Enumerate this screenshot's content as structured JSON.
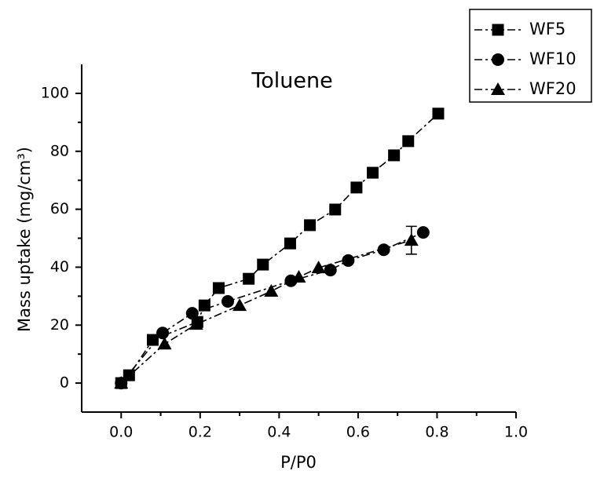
{
  "chart_data": {
    "type": "line",
    "title": "Toluene",
    "xlabel": "P/P0",
    "ylabel": "Mass uptake (mg/cm³)",
    "xlim": [
      -0.1,
      1.0
    ],
    "ylim": [
      -10,
      110
    ],
    "xticks": [
      {
        "value": 0,
        "label": "0.0"
      },
      0.2,
      0.4,
      0.6,
      0.8,
      {
        "value": 1,
        "label": "1.0"
      }
    ],
    "yticks": [
      0,
      20,
      40,
      60,
      80,
      100
    ],
    "legend": "top-right",
    "series": [
      {
        "name": "WF5",
        "color": "#000000",
        "marker": "square",
        "x": [
          0,
          0.02,
          0.08,
          0.193,
          0.211,
          0.247,
          0.323,
          0.359,
          0.428,
          0.478,
          0.542,
          0.596,
          0.637,
          0.691,
          0.727,
          0.803
        ],
        "values": [
          0,
          2.7,
          14.9,
          21.1,
          26.8,
          32.8,
          36,
          40.9,
          48.2,
          54.5,
          59.9,
          67.5,
          72.6,
          78.6,
          83.5,
          93
        ]
      },
      {
        "name": "WF10",
        "color": "#000000",
        "marker": "circle",
        "x": [
          0,
          0.105,
          0.18,
          0.27,
          0.43,
          0.53,
          0.575,
          0.665,
          0.765
        ],
        "values": [
          0,
          17.3,
          24.1,
          28.2,
          35.3,
          39,
          42.3,
          46,
          52
        ]
      },
      {
        "name": "WF20",
        "color": "#000000",
        "marker": "triangle",
        "x": [
          0,
          0.11,
          0.19,
          0.3,
          0.38,
          0.45,
          0.5,
          0.735
        ],
        "values": [
          0,
          13.5,
          20.3,
          26.8,
          31.7,
          36.6,
          39.8,
          49.3
        ],
        "errors": [
          null,
          null,
          null,
          null,
          null,
          null,
          null,
          4.8
        ]
      }
    ]
  }
}
